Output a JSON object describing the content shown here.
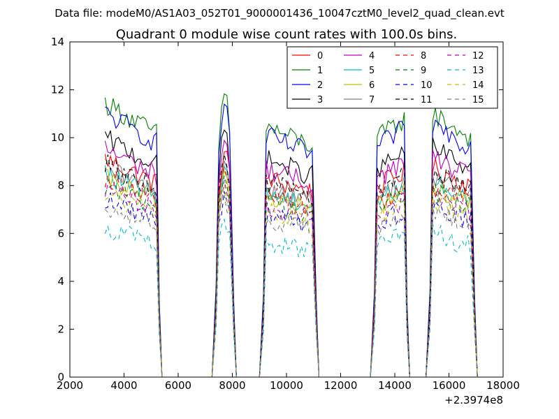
{
  "chart_data": {
    "type": "line",
    "suptitle": "Data file: modeM0/AS1A03_052T01_9000001436_10047cztM0_level2_quad_clean.evt",
    "title": "Quadrant 0 module wise count rates with 100.0s bins.",
    "xlabel": "",
    "ylabel": "",
    "xlim": [
      2000,
      18000
    ],
    "ylim": [
      0,
      14
    ],
    "x_offset_label": "+2.3974e8",
    "xticks": [
      "2000",
      "4000",
      "6000",
      "8000",
      "10000",
      "12000",
      "14000",
      "16000",
      "18000"
    ],
    "yticks": [
      "0",
      "2",
      "4",
      "6",
      "8",
      "10",
      "12",
      "14"
    ],
    "legend_position": "top-right",
    "segments": [
      {
        "x_start": 3300,
        "x_end": 5200,
        "peak_x": 3300
      },
      {
        "x_start": 7500,
        "x_end": 7950,
        "peak_x": 7750
      },
      {
        "x_start": 9250,
        "x_end": 11000,
        "peak_x": 10100
      },
      {
        "x_start": 13350,
        "x_end": 14350,
        "peak_x": 14300
      },
      {
        "x_start": 15400,
        "x_end": 16850,
        "peak_x": 15400
      }
    ],
    "series": [
      {
        "name": "0",
        "color": "#ff0000",
        "dash": "solid",
        "level": 8.6
      },
      {
        "name": "1",
        "color": "#008000",
        "dash": "solid",
        "level": 10.8
      },
      {
        "name": "2",
        "color": "#0000ff",
        "dash": "solid",
        "level": 10.4
      },
      {
        "name": "3",
        "color": "#000000",
        "dash": "solid",
        "level": 9.4
      },
      {
        "name": "4",
        "color": "#bf00bf",
        "dash": "solid",
        "level": 9.0
      },
      {
        "name": "5",
        "color": "#00bfbf",
        "dash": "solid",
        "level": 8.0
      },
      {
        "name": "6",
        "color": "#bfbf00",
        "dash": "solid",
        "level": 7.8
      },
      {
        "name": "7",
        "color": "#808080",
        "dash": "solid",
        "level": 8.2
      },
      {
        "name": "8",
        "color": "#ff0000",
        "dash": "dashed",
        "level": 7.9
      },
      {
        "name": "9",
        "color": "#008000",
        "dash": "dashed",
        "level": 7.6
      },
      {
        "name": "10",
        "color": "#0000ff",
        "dash": "dashed",
        "level": 7.0
      },
      {
        "name": "11",
        "color": "#000000",
        "dash": "dashed",
        "level": 8.4
      },
      {
        "name": "12",
        "color": "#bf00bf",
        "dash": "dashed",
        "level": 7.4
      },
      {
        "name": "13",
        "color": "#00bfbf",
        "dash": "dashed",
        "level": 5.9
      },
      {
        "name": "14",
        "color": "#bfbf00",
        "dash": "dashed",
        "level": 7.2
      },
      {
        "name": "15",
        "color": "#808080",
        "dash": "dashed",
        "level": 6.8
      }
    ]
  }
}
